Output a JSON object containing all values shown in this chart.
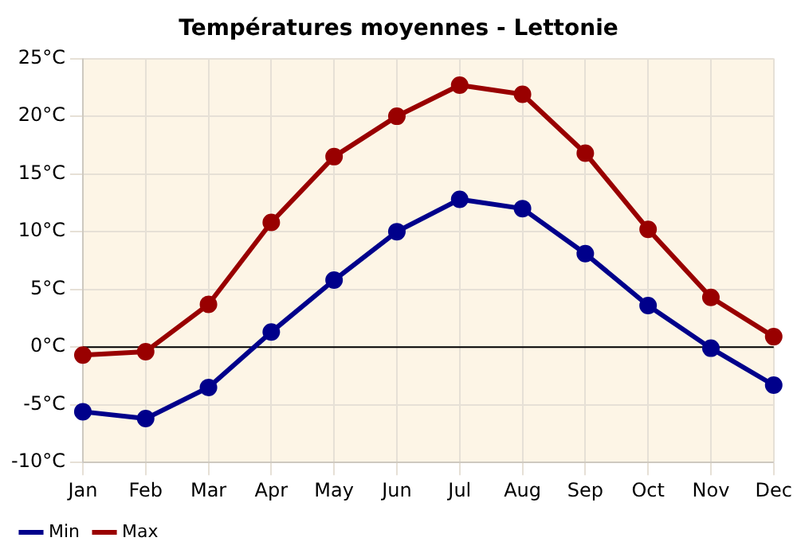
{
  "chart_data": {
    "type": "line",
    "title": "Températures moyennes - Lettonie",
    "categories": [
      "Jan",
      "Feb",
      "Mar",
      "Apr",
      "May",
      "Jun",
      "Jul",
      "Aug",
      "Sep",
      "Oct",
      "Nov",
      "Dec"
    ],
    "series": [
      {
        "name": "Min",
        "color": "#00008b",
        "values": [
          -5.6,
          -6.2,
          -3.5,
          1.3,
          5.8,
          10.0,
          12.8,
          12.0,
          8.1,
          3.6,
          -0.1,
          -3.3
        ]
      },
      {
        "name": "Max",
        "color": "#990000",
        "values": [
          -0.7,
          -0.4,
          3.7,
          10.8,
          16.5,
          20.0,
          22.7,
          21.9,
          16.8,
          10.2,
          4.3,
          0.9
        ]
      }
    ],
    "ylim": [
      -10,
      25
    ],
    "yticks": [
      {
        "value": -10,
        "label": "-10°C"
      },
      {
        "value": -5,
        "label": "-5°C"
      },
      {
        "value": 0,
        "label": "0°C"
      },
      {
        "value": 5,
        "label": "5°C"
      },
      {
        "value": 10,
        "label": "10°C"
      },
      {
        "value": 15,
        "label": "15°C"
      },
      {
        "value": 20,
        "label": "20°C"
      },
      {
        "value": 25,
        "label": "25°C"
      }
    ],
    "ref_lines": [
      {
        "axis": "y",
        "value": 0,
        "color": "#000000"
      }
    ],
    "grid": true,
    "legend": "bottom left",
    "marker": "circle",
    "line_style": "solid"
  }
}
